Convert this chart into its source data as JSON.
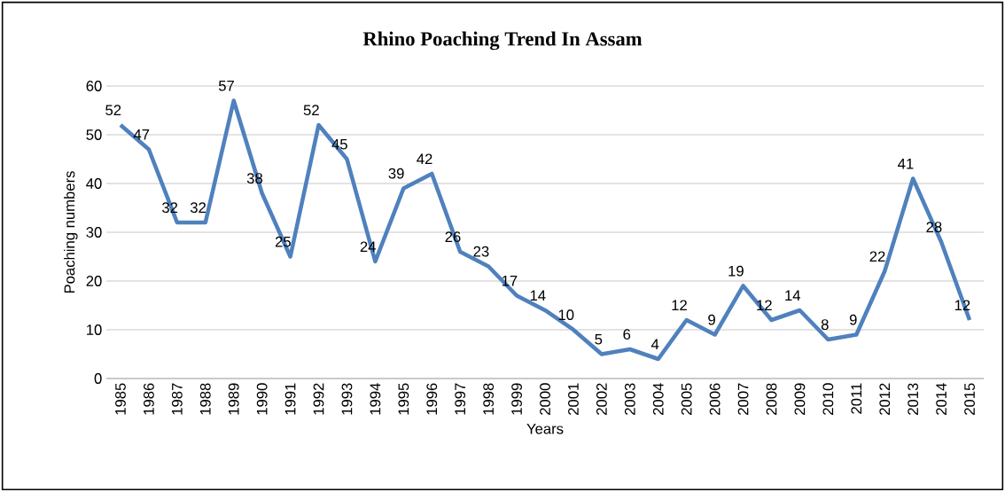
{
  "chart_data": {
    "type": "line",
    "title": "Rhino Poaching Trend In Assam",
    "xlabel": "Years",
    "ylabel": "Poaching numbers",
    "categories": [
      "1985",
      "1986",
      "1987",
      "1988",
      "1989",
      "1990",
      "1991",
      "1992",
      "1993",
      "1994",
      "1995",
      "1996",
      "1997",
      "1998",
      "1999",
      "2000",
      "2001",
      "2002",
      "2003",
      "2004",
      "2005",
      "2006",
      "2007",
      "2008",
      "2009",
      "2010",
      "2011",
      "2012",
      "2013",
      "2014",
      "2015"
    ],
    "series": [
      {
        "color": "#4f81bd",
        "values": [
          52,
          47,
          32,
          32,
          57,
          38,
          25,
          52,
          45,
          24,
          39,
          42,
          26,
          23,
          17,
          14,
          10,
          5,
          6,
          4,
          12,
          9,
          19,
          12,
          14,
          8,
          9,
          22,
          41,
          28,
          12
        ]
      }
    ],
    "ylim": [
      0,
      60
    ],
    "yticks": [
      0,
      10,
      20,
      30,
      40,
      50,
      60
    ],
    "grid": "y",
    "data_labels": true
  }
}
